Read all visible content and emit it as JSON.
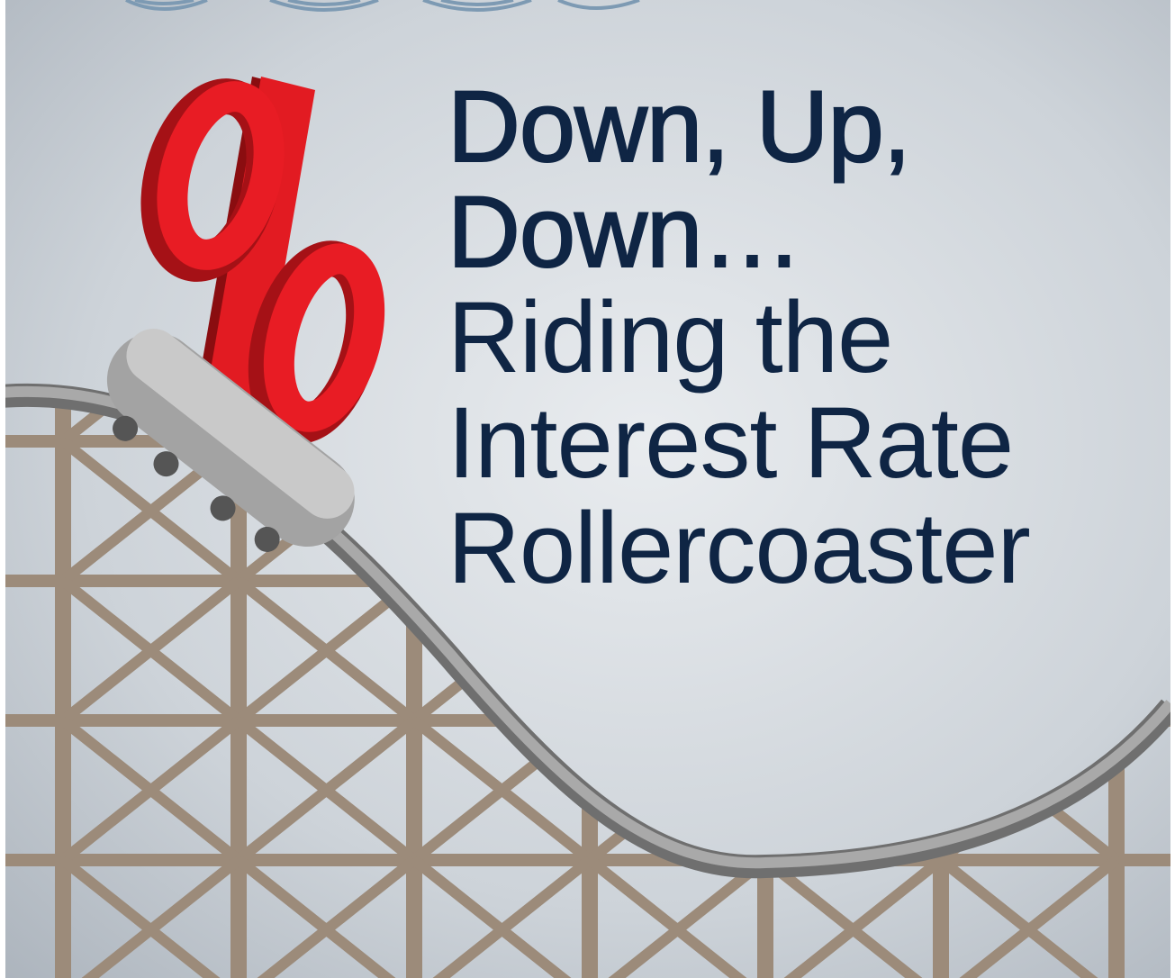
{
  "headline": {
    "bold": [
      "Down, Up,",
      "Down…"
    ],
    "light": [
      "Riding the",
      "Interest Rate",
      "Rollercoaster"
    ]
  }
}
